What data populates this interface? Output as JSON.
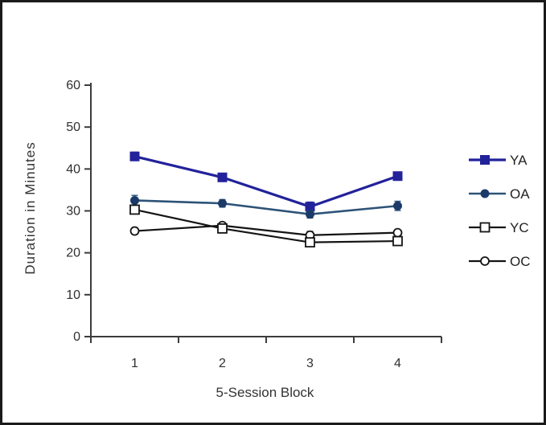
{
  "figure": {
    "background_color": "#ffffff",
    "border_color": "#1a1a1a",
    "axis_color": "#3c3c3c",
    "text_color": "#2f2f2f"
  },
  "chart_data": {
    "type": "line",
    "title": "",
    "xlabel": "5-Session Block",
    "ylabel": "Duration in Minutes",
    "x_categories": [
      "1",
      "2",
      "3",
      "4"
    ],
    "ylim": [
      0,
      60
    ],
    "yticks": [
      0,
      10,
      20,
      30,
      40,
      50,
      60
    ],
    "grid": "off",
    "legend_position": "right",
    "error_bars": true,
    "series": [
      {
        "name": "YA",
        "values": [
          43,
          38,
          31,
          38.3
        ],
        "errors": [
          1.0,
          0.7,
          1.1,
          0.8
        ],
        "color": "#22229b",
        "marker_color": "#22229b",
        "marker": "square-filled",
        "line_width": 3.2
      },
      {
        "name": "OA",
        "values": [
          32.5,
          31.8,
          29.2,
          31.2
        ],
        "errors": [
          1.2,
          0.9,
          0.9,
          1.1
        ],
        "color": "#2d5377",
        "marker_color": "#1b3a69",
        "marker": "circle-filled",
        "line_width": 2.6
      },
      {
        "name": "YC",
        "values": [
          30.3,
          25.8,
          22.5,
          22.8
        ],
        "errors": [
          1.0,
          1.0,
          0.8,
          0.7
        ],
        "color": "#141414",
        "marker_color": "#ffffff",
        "marker": "square-open",
        "line_width": 2.2
      },
      {
        "name": "OC",
        "values": [
          25.2,
          26.5,
          24.2,
          24.8
        ],
        "errors": [
          0.8,
          0.7,
          0.9,
          0.6
        ],
        "color": "#141414",
        "marker_color": "#ffffff",
        "marker": "circle-open",
        "line_width": 2.2
      }
    ]
  }
}
